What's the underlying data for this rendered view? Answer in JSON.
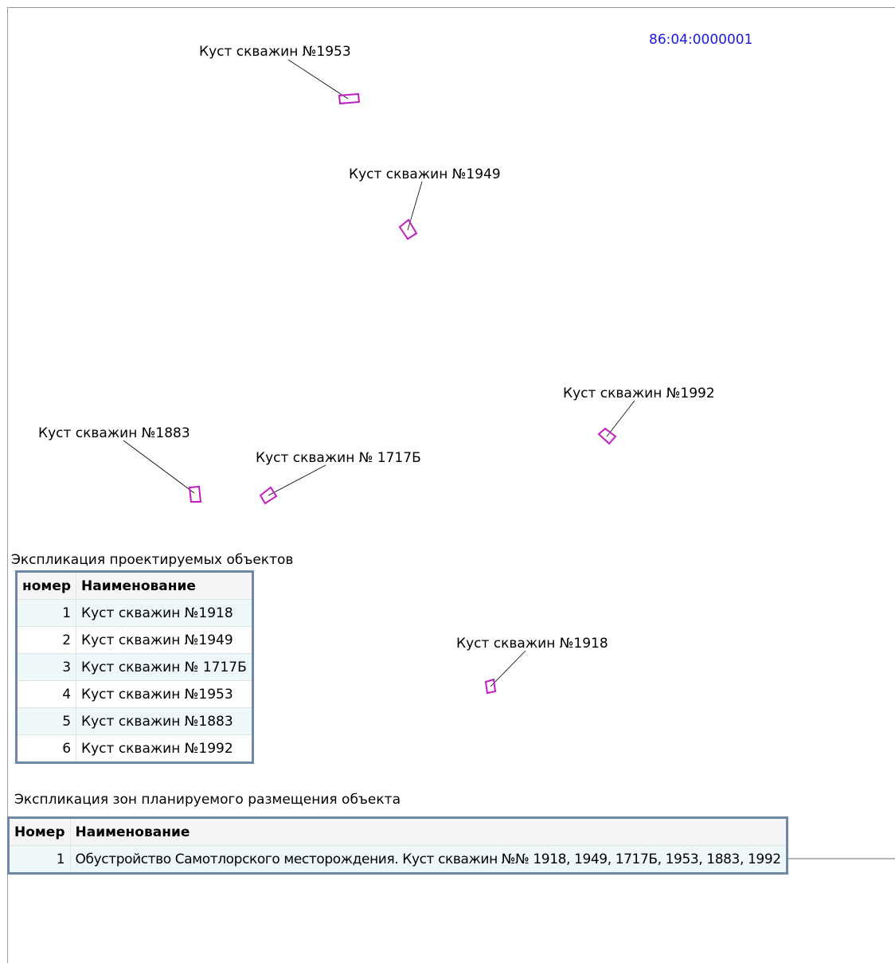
{
  "map": {
    "cadastral_number": "86:04:0000001",
    "outline_color": "#c21cc2",
    "leader_color": "#000000",
    "labels": [
      {
        "id": "1953",
        "text": "Куст скважин №1953"
      },
      {
        "id": "1949",
        "text": "Куст скважин №1949"
      },
      {
        "id": "1992",
        "text": "Куст скважин №1992"
      },
      {
        "id": "1883",
        "text": "Куст скважин №1883"
      },
      {
        "id": "1717b",
        "text": "Куст скважин № 1717Б"
      },
      {
        "id": "1918",
        "text": "Куст скважин №1918"
      }
    ]
  },
  "objects_table": {
    "caption": "Экспликация проектируемых объектов",
    "headers": [
      "номер",
      "Наименование"
    ],
    "rows": [
      {
        "num": "1",
        "name": "Куст скважин №1918"
      },
      {
        "num": "2",
        "name": "Куст скважин №1949"
      },
      {
        "num": "3",
        "name": "Куст скважин № 1717Б"
      },
      {
        "num": "4",
        "name": "Куст скважин №1953"
      },
      {
        "num": "5",
        "name": "Куст скважин №1883"
      },
      {
        "num": "6",
        "name": "Куст скважин №1992"
      }
    ]
  },
  "zones_table": {
    "caption": "Экспликация зон планируемого размещения объекта",
    "headers": [
      "Номер",
      "Наименование"
    ],
    "rows": [
      {
        "num": "1",
        "name": "Обустройство Самотлорского месторождения. Куст скважин №№ 1918, 1949, 1717Б, 1953, 1883, 1992"
      }
    ]
  }
}
